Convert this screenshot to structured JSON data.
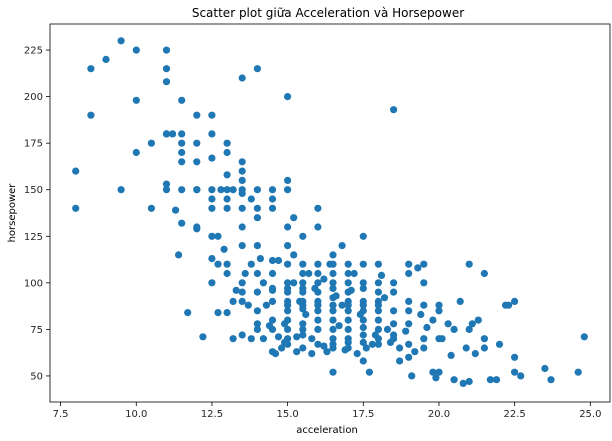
{
  "chart_data": {
    "type": "scatter",
    "title": "Scatter plot giữa Acceleration và Horsepower",
    "xlabel": "acceleration",
    "ylabel": "horsepower",
    "xlim": [
      7.15,
      25.65
    ],
    "ylim": [
      36,
      239
    ],
    "xticks": [
      7.5,
      10.0,
      12.5,
      15.0,
      17.5,
      20.0,
      22.5,
      25.0
    ],
    "xtick_labels": [
      "7.5",
      "10.0",
      "12.5",
      "15.0",
      "17.5",
      "20.0",
      "22.5",
      "25.0"
    ],
    "yticks": [
      50,
      75,
      100,
      125,
      150,
      175,
      200,
      225
    ],
    "ytick_labels": [
      "50",
      "75",
      "100",
      "125",
      "150",
      "175",
      "200",
      "225"
    ],
    "grid": false,
    "marker_color": "#1f77b4",
    "points": [
      [
        8.0,
        160
      ],
      [
        8.0,
        140
      ],
      [
        8.5,
        215
      ],
      [
        8.5,
        190
      ],
      [
        9.0,
        220
      ],
      [
        9.5,
        230
      ],
      [
        9.5,
        150
      ],
      [
        10.0,
        225
      ],
      [
        10.0,
        198
      ],
      [
        10.0,
        170
      ],
      [
        10.5,
        175
      ],
      [
        10.5,
        140
      ],
      [
        11.0,
        225
      ],
      [
        11.0,
        215
      ],
      [
        11.0,
        208
      ],
      [
        11.0,
        180
      ],
      [
        11.0,
        180
      ],
      [
        11.0,
        153
      ],
      [
        11.0,
        150
      ],
      [
        11.2,
        180
      ],
      [
        11.3,
        139
      ],
      [
        11.4,
        115
      ],
      [
        11.5,
        198
      ],
      [
        11.5,
        180
      ],
      [
        11.5,
        175
      ],
      [
        11.5,
        170
      ],
      [
        11.5,
        165
      ],
      [
        11.5,
        150
      ],
      [
        11.5,
        132
      ],
      [
        11.7,
        84
      ],
      [
        12.0,
        175
      ],
      [
        12.0,
        165
      ],
      [
        12.0,
        150
      ],
      [
        12.0,
        130
      ],
      [
        12.0,
        129
      ],
      [
        12.0,
        150
      ],
      [
        12.5,
        190
      ],
      [
        12.5,
        180
      ],
      [
        12.5,
        167
      ],
      [
        12.5,
        150
      ],
      [
        12.5,
        145
      ],
      [
        12.5,
        140
      ],
      [
        12.5,
        125
      ],
      [
        12.5,
        113
      ],
      [
        12.0,
        190
      ],
      [
        12.2,
        71
      ],
      [
        12.5,
        100
      ],
      [
        12.7,
        110
      ],
      [
        12.7,
        125
      ],
      [
        12.8,
        150
      ],
      [
        13.0,
        175
      ],
      [
        13.0,
        170
      ],
      [
        13.0,
        158
      ],
      [
        13.0,
        150
      ],
      [
        13.0,
        145
      ],
      [
        13.0,
        140
      ],
      [
        13.0,
        110
      ],
      [
        13.0,
        105
      ],
      [
        13.0,
        84
      ],
      [
        13.2,
        150
      ],
      [
        13.2,
        90
      ],
      [
        13.2,
        70
      ],
      [
        13.5,
        165
      ],
      [
        13.5,
        160
      ],
      [
        13.5,
        155
      ],
      [
        13.5,
        150
      ],
      [
        13.5,
        148
      ],
      [
        13.5,
        140
      ],
      [
        13.5,
        130
      ],
      [
        13.5,
        120
      ],
      [
        13.5,
        100
      ],
      [
        13.5,
        95
      ],
      [
        13.5,
        90
      ],
      [
        13.5,
        210
      ],
      [
        13.5,
        72
      ],
      [
        13.7,
        88
      ],
      [
        13.8,
        145
      ],
      [
        13.8,
        110
      ],
      [
        14.0,
        215
      ],
      [
        14.0,
        150
      ],
      [
        14.0,
        140
      ],
      [
        14.0,
        135
      ],
      [
        14.0,
        120
      ],
      [
        14.0,
        105
      ],
      [
        14.0,
        95
      ],
      [
        14.0,
        85
      ],
      [
        14.0,
        78
      ],
      [
        14.0,
        75
      ],
      [
        14.2,
        100
      ],
      [
        14.2,
        70
      ],
      [
        14.3,
        88
      ],
      [
        14.5,
        150
      ],
      [
        14.5,
        145
      ],
      [
        14.5,
        140
      ],
      [
        14.5,
        112
      ],
      [
        14.5,
        105
      ],
      [
        14.5,
        97
      ],
      [
        14.5,
        96
      ],
      [
        14.5,
        90
      ],
      [
        14.5,
        80
      ],
      [
        14.5,
        75
      ],
      [
        14.5,
        63
      ],
      [
        14.7,
        112
      ],
      [
        14.7,
        71
      ],
      [
        14.8,
        65
      ],
      [
        15.0,
        155
      ],
      [
        15.0,
        150
      ],
      [
        15.0,
        130
      ],
      [
        15.0,
        120
      ],
      [
        15.0,
        110
      ],
      [
        15.0,
        100
      ],
      [
        15.0,
        97
      ],
      [
        15.0,
        95
      ],
      [
        15.0,
        90
      ],
      [
        15.0,
        88
      ],
      [
        15.0,
        85
      ],
      [
        15.0,
        80
      ],
      [
        15.0,
        75
      ],
      [
        15.0,
        70
      ],
      [
        15.0,
        67
      ],
      [
        15.0,
        200
      ],
      [
        15.2,
        135
      ],
      [
        15.2,
        100
      ],
      [
        15.3,
        63
      ],
      [
        15.4,
        90
      ],
      [
        15.5,
        125
      ],
      [
        15.5,
        110
      ],
      [
        15.5,
        105
      ],
      [
        15.5,
        100
      ],
      [
        15.5,
        97
      ],
      [
        15.5,
        95
      ],
      [
        15.5,
        90
      ],
      [
        15.5,
        88
      ],
      [
        15.5,
        86
      ],
      [
        15.5,
        78
      ],
      [
        15.5,
        75
      ],
      [
        15.5,
        72
      ],
      [
        15.5,
        65
      ],
      [
        15.7,
        105
      ],
      [
        15.8,
        70
      ],
      [
        16.0,
        140
      ],
      [
        16.0,
        110
      ],
      [
        16.0,
        105
      ],
      [
        16.0,
        100
      ],
      [
        16.0,
        95
      ],
      [
        16.0,
        90
      ],
      [
        16.0,
        88
      ],
      [
        16.0,
        85
      ],
      [
        16.0,
        80
      ],
      [
        16.0,
        75
      ],
      [
        16.0,
        67
      ],
      [
        16.0,
        130
      ],
      [
        16.2,
        66
      ],
      [
        16.4,
        110
      ],
      [
        16.5,
        115
      ],
      [
        16.5,
        110
      ],
      [
        16.5,
        105
      ],
      [
        16.5,
        100
      ],
      [
        16.5,
        97
      ],
      [
        16.5,
        92
      ],
      [
        16.5,
        88
      ],
      [
        16.5,
        85
      ],
      [
        16.5,
        80
      ],
      [
        16.5,
        75
      ],
      [
        16.5,
        70
      ],
      [
        16.5,
        67
      ],
      [
        16.5,
        65
      ],
      [
        16.5,
        52
      ],
      [
        16.8,
        120
      ],
      [
        16.8,
        88
      ],
      [
        17.0,
        110
      ],
      [
        17.0,
        105
      ],
      [
        17.0,
        100
      ],
      [
        17.0,
        95
      ],
      [
        17.0,
        90
      ],
      [
        17.0,
        88
      ],
      [
        17.0,
        85
      ],
      [
        17.0,
        80
      ],
      [
        17.0,
        75
      ],
      [
        17.0,
        70
      ],
      [
        17.0,
        68
      ],
      [
        17.0,
        65
      ],
      [
        17.2,
        105
      ],
      [
        17.3,
        62
      ],
      [
        17.5,
        125
      ],
      [
        17.5,
        110
      ],
      [
        17.5,
        100
      ],
      [
        17.5,
        97
      ],
      [
        17.5,
        90
      ],
      [
        17.5,
        88
      ],
      [
        17.5,
        85
      ],
      [
        17.5,
        80
      ],
      [
        17.5,
        76
      ],
      [
        17.5,
        72
      ],
      [
        17.5,
        68
      ],
      [
        17.5,
        58
      ],
      [
        17.7,
        52
      ],
      [
        17.8,
        67
      ],
      [
        18.0,
        110
      ],
      [
        18.0,
        100
      ],
      [
        18.0,
        95
      ],
      [
        18.0,
        90
      ],
      [
        18.0,
        88
      ],
      [
        18.0,
        85
      ],
      [
        18.0,
        80
      ],
      [
        18.0,
        75
      ],
      [
        18.0,
        70
      ],
      [
        18.0,
        67
      ],
      [
        18.2,
        92
      ],
      [
        18.3,
        75
      ],
      [
        18.5,
        193
      ],
      [
        18.5,
        100
      ],
      [
        18.5,
        95
      ],
      [
        18.5,
        85
      ],
      [
        18.5,
        78
      ],
      [
        18.5,
        72
      ],
      [
        18.5,
        70
      ],
      [
        18.7,
        58
      ],
      [
        19.0,
        110
      ],
      [
        19.0,
        105
      ],
      [
        19.0,
        90
      ],
      [
        19.0,
        85
      ],
      [
        19.0,
        78
      ],
      [
        19.0,
        67
      ],
      [
        19.0,
        60
      ],
      [
        19.2,
        63
      ],
      [
        19.5,
        110
      ],
      [
        19.5,
        100
      ],
      [
        19.5,
        88
      ],
      [
        19.5,
        70
      ],
      [
        19.5,
        65
      ],
      [
        19.8,
        80
      ],
      [
        19.8,
        52
      ],
      [
        19.9,
        49
      ],
      [
        20.0,
        88
      ],
      [
        20.0,
        85
      ],
      [
        20.0,
        70
      ],
      [
        20.3,
        78
      ],
      [
        20.5,
        75
      ],
      [
        20.5,
        48
      ],
      [
        20.7,
        90
      ],
      [
        21.0,
        110
      ],
      [
        21.0,
        75
      ],
      [
        21.0,
        47
      ],
      [
        21.3,
        80
      ],
      [
        21.5,
        65
      ],
      [
        21.5,
        105
      ],
      [
        21.7,
        48
      ],
      [
        21.9,
        48
      ],
      [
        22.0,
        67
      ],
      [
        22.2,
        88
      ],
      [
        22.5,
        90
      ],
      [
        22.5,
        60
      ],
      [
        22.5,
        52
      ],
      [
        22.7,
        50
      ],
      [
        23.5,
        54
      ],
      [
        23.7,
        48
      ],
      [
        24.6,
        52
      ],
      [
        24.8,
        71
      ],
      [
        20.8,
        46
      ],
      [
        20.0,
        52
      ],
      [
        21.5,
        70
      ],
      [
        20.9,
        65
      ],
      [
        22.3,
        88
      ],
      [
        19.1,
        50
      ],
      [
        18.7,
        65
      ],
      [
        17.6,
        65
      ],
      [
        16.3,
        63
      ],
      [
        15.8,
        62
      ],
      [
        14.6,
        62
      ],
      [
        13.8,
        70
      ],
      [
        14.9,
        68
      ],
      [
        16.9,
        64
      ],
      [
        18.4,
        68
      ],
      [
        19.6,
        76
      ],
      [
        20.4,
        61
      ],
      [
        21.2,
        62
      ],
      [
        12.9,
        118
      ],
      [
        13.3,
        96
      ],
      [
        14.4,
        77
      ],
      [
        15.6,
        83
      ],
      [
        16.7,
        77
      ],
      [
        17.9,
        72
      ],
      [
        18.9,
        74
      ],
      [
        19.3,
        108
      ],
      [
        17.1,
        96
      ],
      [
        15.9,
        97
      ],
      [
        14.1,
        113
      ],
      [
        12.7,
        84
      ],
      [
        13.6,
        105
      ],
      [
        14.9,
        78
      ],
      [
        15.2,
        115
      ],
      [
        16.2,
        102
      ],
      [
        18.1,
        104
      ],
      [
        19.4,
        83
      ],
      [
        20.1,
        70
      ],
      [
        21.1,
        78
      ],
      [
        17.4,
        83
      ],
      [
        16.6,
        93
      ],
      [
        15.3,
        71
      ]
    ]
  }
}
